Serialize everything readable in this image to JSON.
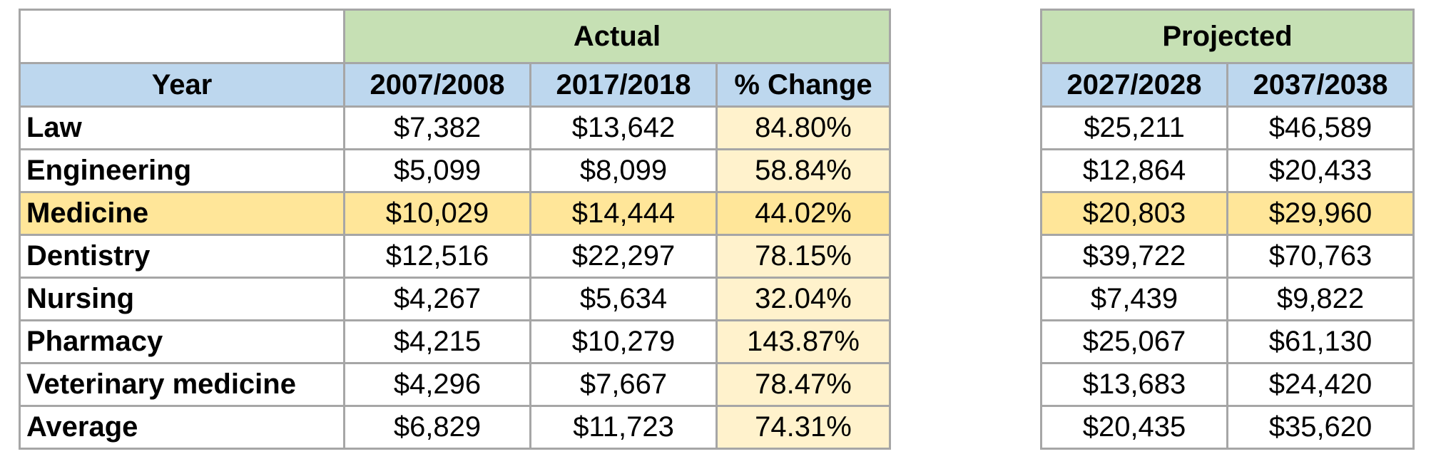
{
  "actual": {
    "group_label": "Actual",
    "headers": [
      "Year",
      "2007/2008",
      "2017/2018",
      "% Change"
    ],
    "rows": [
      {
        "label": "Law",
        "v2007": "$7,382",
        "v2017": "$13,642",
        "change": "84.80%"
      },
      {
        "label": "Engineering",
        "v2007": "$5,099",
        "v2017": "$8,099",
        "change": "58.84%"
      },
      {
        "label": "Medicine",
        "v2007": "$10,029",
        "v2017": "$14,444",
        "change": "44.02%"
      },
      {
        "label": "Dentistry",
        "v2007": "$12,516",
        "v2017": "$22,297",
        "change": "78.15%"
      },
      {
        "label": "Nursing",
        "v2007": "$4,267",
        "v2017": "$5,634",
        "change": "32.04%"
      },
      {
        "label": "Pharmacy",
        "v2007": "$4,215",
        "v2017": "$10,279",
        "change": "143.87%"
      },
      {
        "label": "Veterinary medicine",
        "v2007": "$4,296",
        "v2017": "$7,667",
        "change": "78.47%"
      },
      {
        "label": "Average",
        "v2007": "$6,829",
        "v2017": "$11,723",
        "change": "74.31%"
      }
    ]
  },
  "projected": {
    "group_label": "Projected",
    "headers": [
      "2027/2028",
      "2037/2038"
    ],
    "rows": [
      {
        "v2027": "$25,211",
        "v2037": "$46,589"
      },
      {
        "v2027": "$12,864",
        "v2037": "$20,433"
      },
      {
        "v2027": "$20,803",
        "v2037": "$29,960"
      },
      {
        "v2027": "$39,722",
        "v2037": "$70,763"
      },
      {
        "v2027": "$7,439",
        "v2037": "$9,822"
      },
      {
        "v2027": "$25,067",
        "v2037": "$61,130"
      },
      {
        "v2027": "$13,683",
        "v2037": "$24,420"
      },
      {
        "v2027": "$20,435",
        "v2037": "$35,620"
      }
    ]
  },
  "colors": {
    "group_header_green": "#c6e0b4",
    "column_header_blue": "#bdd7ee",
    "change_column_yellow": "#fff2cc",
    "highlight_row_orange": "#ffe699",
    "grid_line_gray": "#a6a6a6"
  },
  "highlighted_row": "Medicine"
}
